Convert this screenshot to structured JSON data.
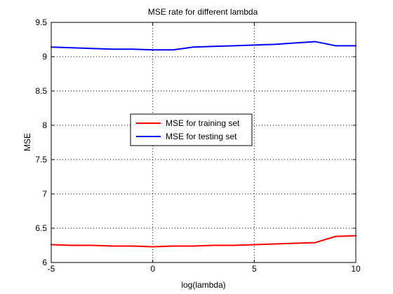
{
  "chart_data": {
    "type": "line",
    "title": "MSE rate for different lambda",
    "xlabel": "log(lambda)",
    "ylabel": "MSE",
    "xlim": [
      -5,
      10
    ],
    "ylim": [
      6,
      9.5
    ],
    "x_ticks": [
      -5,
      0,
      5,
      10
    ],
    "x_tick_labels": [
      "-5",
      "0",
      "5",
      "10"
    ],
    "y_ticks": [
      6,
      6.5,
      7,
      7.5,
      8,
      8.5,
      9,
      9.5
    ],
    "y_tick_labels": [
      "6",
      "6.5",
      "7",
      "7.5",
      "8",
      "8.5",
      "9",
      "9.5"
    ],
    "grid": true,
    "legend_position": "center",
    "series": [
      {
        "name": "MSE for training set",
        "color": "#ff0000",
        "x": [
          -5,
          -4,
          -3,
          -2,
          -1,
          0,
          1,
          2,
          3,
          4,
          5,
          6,
          7,
          8,
          9,
          10
        ],
        "y": [
          6.26,
          6.25,
          6.25,
          6.24,
          6.24,
          6.23,
          6.24,
          6.24,
          6.25,
          6.25,
          6.26,
          6.27,
          6.28,
          6.29,
          6.38,
          6.39
        ]
      },
      {
        "name": "MSE for testing set",
        "color": "#0000ff",
        "x": [
          -5,
          -4,
          -3,
          -2,
          -1,
          0,
          1,
          2,
          3,
          4,
          5,
          6,
          7,
          8,
          9,
          10
        ],
        "y": [
          9.14,
          9.13,
          9.12,
          9.11,
          9.11,
          9.1,
          9.1,
          9.14,
          9.15,
          9.16,
          9.17,
          9.18,
          9.2,
          9.22,
          9.16,
          9.16
        ]
      }
    ]
  }
}
